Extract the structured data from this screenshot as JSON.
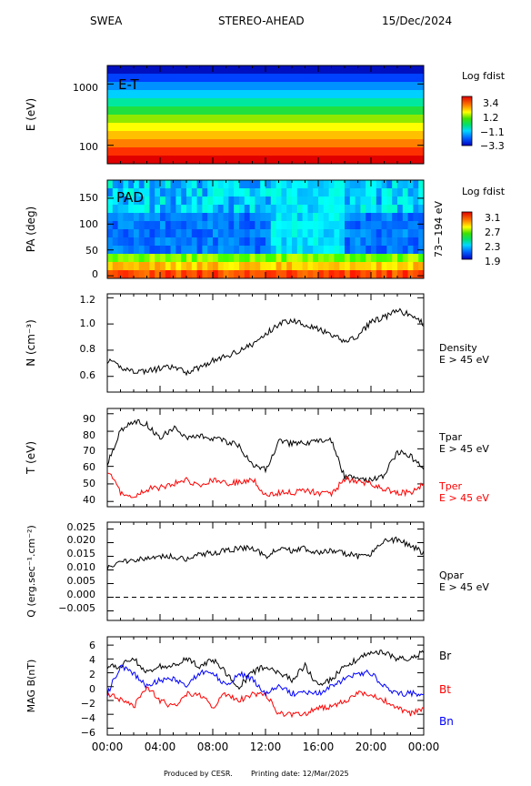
{
  "header": {
    "instrument": "SWEA",
    "spacecraft": "STEREO-AHEAD",
    "date": "15/Dec/2024"
  },
  "footer": {
    "produced": "Produced by CESR.",
    "printing": "Printing date: 12/Mar/2025"
  },
  "colors": {
    "black": "#000000",
    "red": "#ff0000",
    "blue": "#0000ff",
    "dashed": "#000000"
  },
  "chart_data": [
    {
      "id": "et",
      "type": "heatmap",
      "inner_label": "E-T",
      "ylabel": "E (eV)",
      "yscale": "log",
      "yticks": [
        "1000",
        "100"
      ],
      "ytick_values": [
        1000,
        100
      ],
      "ylim": [
        50,
        2000
      ],
      "colorbar": {
        "title": "Log fdist",
        "ticks": [
          "3.4",
          "1.2",
          "−1.1",
          "−3.3"
        ]
      }
    },
    {
      "id": "pad",
      "type": "heatmap",
      "inner_label": "PAD",
      "ylabel": "PA (deg)",
      "yticks": [
        "150",
        "100",
        "50",
        "0"
      ],
      "ytick_values": [
        150,
        100,
        50,
        0
      ],
      "ylim": [
        -5,
        185
      ],
      "side_label": "73−194 eV",
      "colorbar": {
        "title": "Log fdist",
        "ticks": [
          "3.1",
          "2.7",
          "2.3",
          "1.9"
        ]
      }
    },
    {
      "id": "density",
      "type": "line",
      "ylabel": "N (cm⁻³)",
      "yticks": [
        "1.2",
        "1.0",
        "0.8",
        "0.6"
      ],
      "ytick_values": [
        1.2,
        1.0,
        0.8,
        0.6
      ],
      "ylim": [
        0.48,
        1.23
      ],
      "legend": [
        {
          "text": "Density",
          "color": "#000000"
        },
        {
          "text": "E > 45 eV",
          "color": "#000000"
        }
      ],
      "series": [
        {
          "color": "#000000",
          "x": [
            0,
            1,
            2,
            3,
            4,
            5,
            6,
            7,
            8,
            9,
            10,
            11,
            12,
            13,
            14,
            15,
            16,
            17,
            18,
            19,
            20,
            21,
            22,
            23,
            24
          ],
          "y": [
            0.72,
            0.67,
            0.64,
            0.64,
            0.66,
            0.67,
            0.63,
            0.67,
            0.72,
            0.75,
            0.8,
            0.84,
            0.92,
            1.0,
            1.03,
            1.0,
            0.96,
            0.91,
            0.87,
            0.9,
            1.02,
            1.05,
            1.1,
            1.07,
            1.0
          ]
        }
      ]
    },
    {
      "id": "temperature",
      "type": "line",
      "ylabel": "T (eV)",
      "yticks": [
        "90",
        "80",
        "70",
        "60",
        "50",
        "40"
      ],
      "ytick_values": [
        90,
        80,
        70,
        60,
        50,
        40
      ],
      "ylim": [
        37,
        93
      ],
      "legend": [
        {
          "text": "Tpar",
          "color": "#000000"
        },
        {
          "text": "E > 45 eV",
          "color": "#000000"
        },
        {
          "text": "Tper",
          "color": "#ff0000"
        },
        {
          "text": "E > 45 eV",
          "color": "#ff0000"
        }
      ],
      "series": [
        {
          "name": "Tpar",
          "color": "#000000",
          "x": [
            0,
            1,
            2,
            3,
            4,
            5,
            6,
            7,
            8,
            9,
            10,
            11,
            12,
            13,
            14,
            15,
            16,
            17,
            18,
            19,
            20,
            21,
            22,
            23,
            24
          ],
          "y": [
            62,
            80,
            86,
            84,
            76,
            82,
            76,
            78,
            76,
            74,
            72,
            60,
            58,
            74,
            73,
            73,
            74,
            75,
            54,
            53,
            52,
            55,
            68,
            66,
            58
          ]
        },
        {
          "name": "Tper",
          "color": "#ff0000",
          "x": [
            0,
            1,
            2,
            3,
            4,
            5,
            6,
            7,
            8,
            9,
            10,
            11,
            12,
            13,
            14,
            15,
            16,
            17,
            18,
            19,
            20,
            21,
            22,
            23,
            24
          ],
          "y": [
            58,
            45,
            43,
            47,
            48,
            50,
            52,
            49,
            52,
            50,
            51,
            53,
            44,
            45,
            45,
            46,
            45,
            44,
            53,
            51,
            50,
            47,
            45,
            45,
            50
          ]
        }
      ]
    },
    {
      "id": "qpar",
      "type": "line",
      "ylabel": "Q (erg.sec⁻¹.cm⁻²)",
      "yticks": [
        "0.025",
        "0.020",
        "0.015",
        "0.010",
        "0.005",
        "0.000",
        "−0.005"
      ],
      "ytick_values": [
        0.025,
        0.02,
        0.015,
        0.01,
        0.005,
        0.0,
        -0.005
      ],
      "ylim": [
        -0.0085,
        0.0275
      ],
      "legend": [
        {
          "text": "Qpar",
          "color": "#000000"
        },
        {
          "text": "E > 45 eV",
          "color": "#000000"
        }
      ],
      "series": [
        {
          "name": "Qpar",
          "color": "#000000",
          "x": [
            0,
            1,
            2,
            3,
            4,
            5,
            6,
            7,
            8,
            9,
            10,
            11,
            12,
            13,
            14,
            15,
            16,
            17,
            18,
            19,
            20,
            21,
            22,
            23,
            24
          ],
          "y": [
            0.011,
            0.013,
            0.014,
            0.014,
            0.015,
            0.015,
            0.014,
            0.016,
            0.016,
            0.017,
            0.018,
            0.018,
            0.015,
            0.018,
            0.017,
            0.018,
            0.016,
            0.017,
            0.016,
            0.015,
            0.016,
            0.021,
            0.021,
            0.019,
            0.016
          ]
        }
      ]
    },
    {
      "id": "mag",
      "type": "line",
      "ylabel": "MAG B(nT)",
      "yticks": [
        "6",
        "4",
        "2",
        "0",
        "−2",
        "−4",
        "−6"
      ],
      "ytick_values": [
        6,
        4,
        2,
        0,
        -2,
        -4,
        -6
      ],
      "ylim": [
        -7,
        7.2
      ],
      "xticks": [
        "00:00",
        "04:00",
        "08:00",
        "12:00",
        "16:00",
        "20:00",
        "00:00"
      ],
      "xtick_values": [
        0,
        4,
        8,
        12,
        16,
        20,
        24
      ],
      "legend": [
        {
          "text": "Br",
          "color": "#000000"
        },
        {
          "text": "Bt",
          "color": "#ff0000"
        },
        {
          "text": "Bn",
          "color": "#0000ff"
        }
      ],
      "series": [
        {
          "name": "Br",
          "color": "#000000",
          "x": [
            0,
            1,
            2,
            3,
            4,
            5,
            6,
            7,
            8,
            9,
            10,
            11,
            12,
            13,
            14,
            15,
            16,
            17,
            18,
            19,
            20,
            21,
            22,
            23,
            24
          ],
          "y": [
            3,
            3,
            4,
            2,
            3,
            3,
            4,
            3,
            4,
            2,
            0,
            2,
            3,
            2,
            1,
            3,
            0,
            1,
            3,
            4,
            5,
            5,
            4,
            4,
            5
          ]
        },
        {
          "name": "Bt",
          "color": "#ff0000",
          "x": [
            0,
            1,
            2,
            3,
            4,
            5,
            6,
            7,
            8,
            9,
            10,
            11,
            12,
            13,
            14,
            15,
            16,
            17,
            18,
            19,
            20,
            21,
            22,
            23,
            24
          ],
          "y": [
            -1,
            -2,
            -3,
            0,
            -2,
            -3,
            -1,
            -1,
            -3,
            -1,
            -2,
            -1,
            -1,
            -4,
            -4,
            -4,
            -3,
            -3,
            -2,
            -1,
            -1,
            -2,
            -3,
            -4,
            -3
          ]
        },
        {
          "name": "Bn",
          "color": "#0000ff",
          "x": [
            0,
            1,
            2,
            3,
            4,
            5,
            6,
            7,
            8,
            9,
            10,
            11,
            12,
            13,
            14,
            15,
            16,
            17,
            18,
            19,
            20,
            21,
            22,
            23,
            24
          ],
          "y": [
            -1,
            3,
            2,
            0,
            1,
            1,
            0,
            2,
            2,
            0,
            2,
            1,
            -1,
            0,
            -1,
            -1,
            -1,
            0,
            1,
            2,
            2,
            0,
            -1,
            -1,
            -1
          ]
        }
      ]
    }
  ]
}
